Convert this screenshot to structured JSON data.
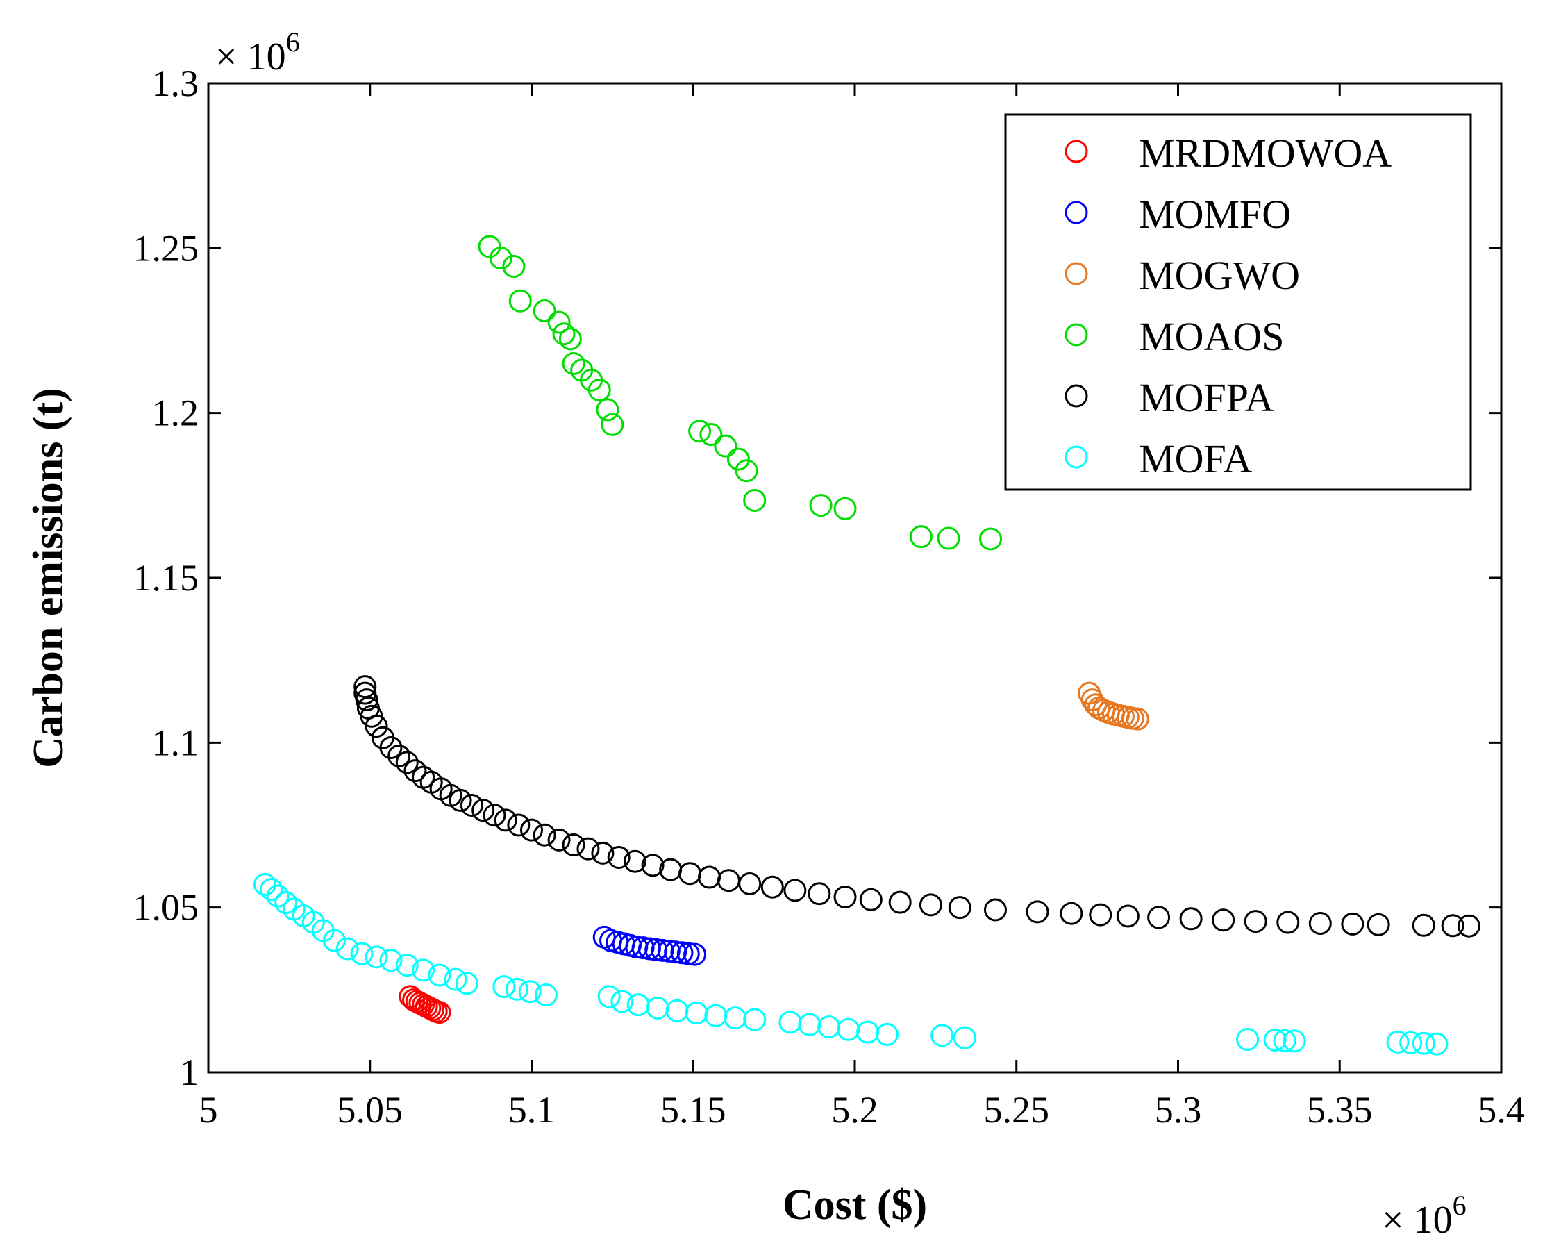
{
  "chart_data": {
    "type": "scatter",
    "xlabel": "Cost ($)",
    "ylabel": "Carbon emissions (t)",
    "x_multiplier": "× 10",
    "x_multiplier_exp": "6",
    "y_multiplier": "× 10",
    "y_multiplier_exp": "6",
    "xlim": [
      5.0,
      5.4
    ],
    "ylim": [
      1.0,
      1.3
    ],
    "x_ticks": [
      "5",
      "5.05",
      "5.1",
      "5.15",
      "5.2",
      "5.25",
      "5.3",
      "5.35",
      "5.4"
    ],
    "x_tick_values": [
      5.0,
      5.05,
      5.1,
      5.15,
      5.2,
      5.25,
      5.3,
      5.35,
      5.4
    ],
    "y_ticks": [
      "1",
      "1.05",
      "1.1",
      "1.15",
      "1.2",
      "1.25",
      "1.3"
    ],
    "y_tick_values": [
      1.0,
      1.05,
      1.1,
      1.15,
      1.2,
      1.25,
      1.3
    ],
    "legend_position": "top-right",
    "marker": "open-circle",
    "series": [
      {
        "name": "MRDMOWOA",
        "color": "#ff0000",
        "points": [
          [
            5.0625,
            1.023
          ],
          [
            5.0635,
            1.022
          ],
          [
            5.0645,
            1.0215
          ],
          [
            5.0655,
            1.021
          ],
          [
            5.0665,
            1.0205
          ],
          [
            5.0675,
            1.02
          ],
          [
            5.0685,
            1.0195
          ],
          [
            5.0695,
            1.019
          ],
          [
            5.0705,
            1.0185
          ],
          [
            5.0715,
            1.0182
          ]
        ]
      },
      {
        "name": "MOMFO",
        "color": "#0000ff",
        "points": [
          [
            5.1225,
            1.041
          ],
          [
            5.1245,
            1.04
          ],
          [
            5.1265,
            1.0395
          ],
          [
            5.1285,
            1.039
          ],
          [
            5.1305,
            1.0385
          ],
          [
            5.1325,
            1.038
          ],
          [
            5.1345,
            1.0378
          ],
          [
            5.1365,
            1.0375
          ],
          [
            5.1385,
            1.0372
          ],
          [
            5.1405,
            1.037
          ],
          [
            5.1425,
            1.0368
          ],
          [
            5.1445,
            1.0365
          ],
          [
            5.1465,
            1.0363
          ],
          [
            5.1485,
            1.036
          ],
          [
            5.1505,
            1.0358
          ]
        ]
      },
      {
        "name": "MOGWO",
        "color": "#e87722",
        "points": [
          [
            5.2725,
            1.115
          ],
          [
            5.2735,
            1.113
          ],
          [
            5.2745,
            1.1115
          ],
          [
            5.2755,
            1.1105
          ],
          [
            5.277,
            1.1098
          ],
          [
            5.2785,
            1.1092
          ],
          [
            5.28,
            1.1087
          ],
          [
            5.2815,
            1.1083
          ],
          [
            5.283,
            1.108
          ],
          [
            5.2845,
            1.1077
          ],
          [
            5.286,
            1.1074
          ],
          [
            5.2875,
            1.1072
          ]
        ]
      },
      {
        "name": "MOAOS",
        "color": "#00dd00",
        "points": [
          [
            5.087,
            1.2505
          ],
          [
            5.0905,
            1.247
          ],
          [
            5.0945,
            1.2445
          ],
          [
            5.0965,
            1.234
          ],
          [
            5.104,
            1.231
          ],
          [
            5.1085,
            1.2275
          ],
          [
            5.11,
            1.224
          ],
          [
            5.112,
            1.2225
          ],
          [
            5.113,
            1.215
          ],
          [
            5.1155,
            1.213
          ],
          [
            5.1185,
            1.21
          ],
          [
            5.121,
            1.207
          ],
          [
            5.1235,
            1.201
          ],
          [
            5.125,
            1.1965
          ],
          [
            5.152,
            1.1945
          ],
          [
            5.1555,
            1.1935
          ],
          [
            5.16,
            1.19
          ],
          [
            5.164,
            1.186
          ],
          [
            5.1665,
            1.1825
          ],
          [
            5.169,
            1.1735
          ],
          [
            5.1895,
            1.172
          ],
          [
            5.197,
            1.171
          ],
          [
            5.2205,
            1.1625
          ],
          [
            5.229,
            1.162
          ],
          [
            5.242,
            1.1618
          ]
        ]
      },
      {
        "name": "MOFPA",
        "color": "#000000",
        "points": [
          [
            5.0485,
            1.117
          ],
          [
            5.0485,
            1.115
          ],
          [
            5.049,
            1.113
          ],
          [
            5.0495,
            1.1105
          ],
          [
            5.0505,
            1.108
          ],
          [
            5.052,
            1.105
          ],
          [
            5.054,
            1.1015
          ],
          [
            5.0565,
            1.0985
          ],
          [
            5.059,
            1.096
          ],
          [
            5.0615,
            1.094
          ],
          [
            5.064,
            1.0915
          ],
          [
            5.0665,
            1.0895
          ],
          [
            5.069,
            1.088
          ],
          [
            5.072,
            1.086
          ],
          [
            5.075,
            1.084
          ],
          [
            5.078,
            1.0825
          ],
          [
            5.0815,
            1.081
          ],
          [
            5.085,
            1.0795
          ],
          [
            5.0885,
            1.078
          ],
          [
            5.092,
            1.0765
          ],
          [
            5.096,
            1.075
          ],
          [
            5.1,
            1.0735
          ],
          [
            5.104,
            1.072
          ],
          [
            5.1085,
            1.0705
          ],
          [
            5.113,
            1.069
          ],
          [
            5.1175,
            1.0678
          ],
          [
            5.122,
            1.0665
          ],
          [
            5.127,
            1.0652
          ],
          [
            5.132,
            1.064
          ],
          [
            5.1375,
            1.0628
          ],
          [
            5.143,
            1.0615
          ],
          [
            5.149,
            1.0603
          ],
          [
            5.155,
            1.0592
          ],
          [
            5.161,
            1.0582
          ],
          [
            5.1675,
            1.0572
          ],
          [
            5.1745,
            1.0562
          ],
          [
            5.1815,
            1.0552
          ],
          [
            5.189,
            1.0542
          ],
          [
            5.197,
            1.0532
          ],
          [
            5.205,
            1.0524
          ],
          [
            5.214,
            1.0516
          ],
          [
            5.2235,
            1.0508
          ],
          [
            5.2325,
            1.05
          ],
          [
            5.2435,
            1.0493
          ],
          [
            5.2565,
            1.0487
          ],
          [
            5.267,
            1.0482
          ],
          [
            5.276,
            1.0478
          ],
          [
            5.2845,
            1.0474
          ],
          [
            5.294,
            1.047
          ],
          [
            5.304,
            1.0466
          ],
          [
            5.314,
            1.0462
          ],
          [
            5.324,
            1.0458
          ],
          [
            5.334,
            1.0455
          ],
          [
            5.344,
            1.0452
          ],
          [
            5.354,
            1.045
          ],
          [
            5.362,
            1.0448
          ],
          [
            5.376,
            1.0446
          ],
          [
            5.385,
            1.0445
          ],
          [
            5.39,
            1.0444
          ]
        ]
      },
      {
        "name": "MOFA",
        "color": "#00ffff",
        "points": [
          [
            5.0175,
            1.057
          ],
          [
            5.0195,
            1.0555
          ],
          [
            5.0215,
            1.0535
          ],
          [
            5.024,
            1.0515
          ],
          [
            5.0265,
            1.0495
          ],
          [
            5.0295,
            1.0475
          ],
          [
            5.0325,
            1.0455
          ],
          [
            5.0355,
            1.043
          ],
          [
            5.039,
            1.04
          ],
          [
            5.043,
            1.0375
          ],
          [
            5.0475,
            1.036
          ],
          [
            5.052,
            1.035
          ],
          [
            5.0565,
            1.034
          ],
          [
            5.0615,
            1.0325
          ],
          [
            5.0665,
            1.031
          ],
          [
            5.0715,
            1.0295
          ],
          [
            5.0765,
            1.0282
          ],
          [
            5.08,
            1.027
          ],
          [
            5.0915,
            1.026
          ],
          [
            5.0955,
            1.0252
          ],
          [
            5.0995,
            1.0245
          ],
          [
            5.1045,
            1.0235
          ],
          [
            5.124,
            1.023
          ],
          [
            5.128,
            1.0215
          ],
          [
            5.133,
            1.0205
          ],
          [
            5.139,
            1.0195
          ],
          [
            5.145,
            1.0187
          ],
          [
            5.151,
            1.018
          ],
          [
            5.157,
            1.0172
          ],
          [
            5.163,
            1.0165
          ],
          [
            5.169,
            1.016
          ],
          [
            5.18,
            1.0152
          ],
          [
            5.186,
            1.0145
          ],
          [
            5.192,
            1.0138
          ],
          [
            5.198,
            1.013
          ],
          [
            5.204,
            1.0122
          ],
          [
            5.21,
            1.0115
          ],
          [
            5.227,
            1.0112
          ],
          [
            5.234,
            1.0105
          ],
          [
            5.3215,
            1.01
          ],
          [
            5.33,
            1.0098
          ],
          [
            5.333,
            1.0096
          ],
          [
            5.336,
            1.0095
          ],
          [
            5.368,
            1.0092
          ],
          [
            5.372,
            1.009
          ],
          [
            5.376,
            1.0088
          ],
          [
            5.38,
            1.0086
          ]
        ]
      }
    ]
  }
}
